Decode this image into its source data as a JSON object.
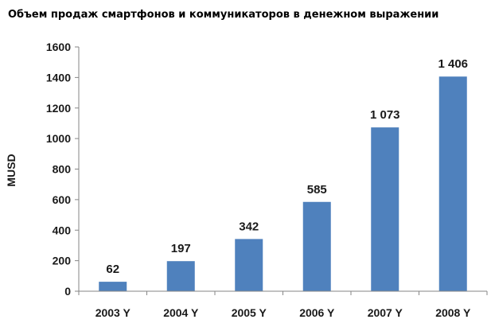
{
  "chart_data": {
    "type": "bar",
    "title": "Объем продаж смартфонов и коммуникаторов в денежном выражении",
    "xlabel": "",
    "ylabel": "MUSD",
    "categories": [
      "2003 Y",
      "2004 Y",
      "2005 Y",
      "2006 Y",
      "2007 Y",
      "2008 Y"
    ],
    "values": [
      62,
      197,
      342,
      585,
      1073,
      1406
    ],
    "data_labels": [
      "62",
      "197",
      "342",
      "585",
      "1 073",
      "1 406"
    ],
    "ylim": [
      0,
      1600
    ],
    "yticks": [
      0,
      200,
      400,
      600,
      800,
      1000,
      1200,
      1400,
      1600
    ],
    "grid": false,
    "legend": "none",
    "bar_color": "#4f81bd",
    "axis_color": "#868686"
  }
}
